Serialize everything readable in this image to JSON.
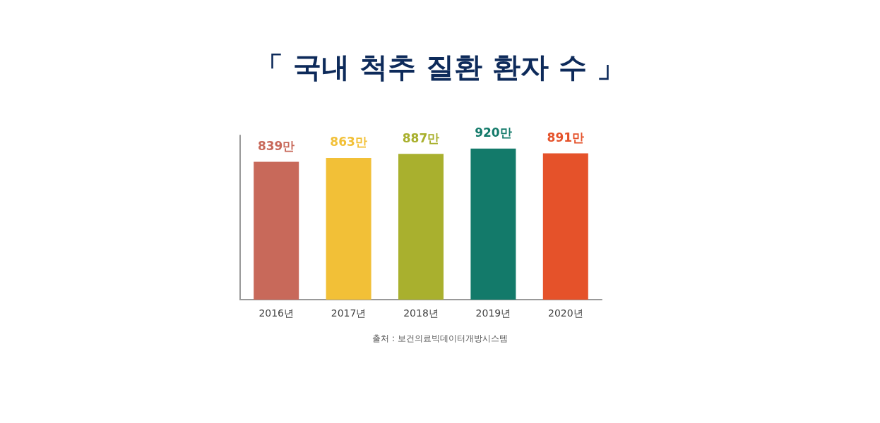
{
  "chart_data": {
    "type": "bar",
    "title": "「 국내 척추 질환 환자 수 」",
    "categories": [
      "2016년",
      "2017년",
      "2018년",
      "2019년",
      "2020년"
    ],
    "values": [
      839,
      863,
      887,
      920,
      891
    ],
    "value_labels": [
      "839만",
      "863만",
      "887만",
      "920만",
      "891만"
    ],
    "colors": [
      "#c8695a",
      "#f2c037",
      "#a9b02e",
      "#137a6a",
      "#e5522a"
    ],
    "tick_labels": "x",
    "annotations": [
      "출처 : 보건의료빅데이터개방시스템"
    ]
  }
}
